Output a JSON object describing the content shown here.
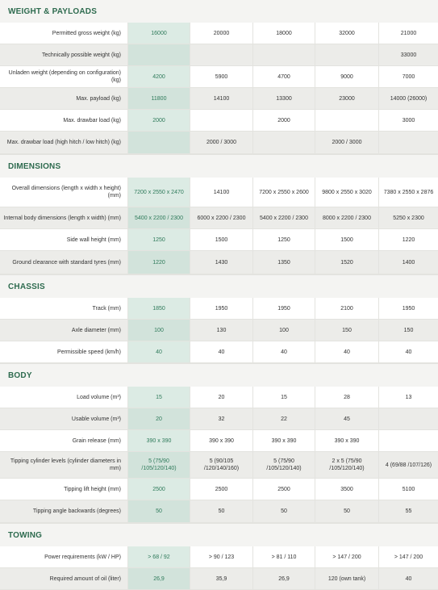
{
  "sections": [
    {
      "title": "WEIGHT & PAYLOADS",
      "rows": [
        {
          "label": "Permitted gross weight (kg)",
          "values": [
            "16000",
            "20000",
            "18000",
            "32000",
            "21000"
          ],
          "h": 26
        },
        {
          "label": "Technically possible weight (kg)",
          "values": [
            "",
            "",
            "",
            "",
            "33000"
          ],
          "h": 26
        },
        {
          "label": "Unladen weight (depending on configuration) (kg)",
          "values": [
            "4200",
            "5900",
            "4700",
            "9000",
            "7000"
          ],
          "h": 26
        },
        {
          "label": "Max. payload (kg)",
          "values": [
            "11800",
            "14100",
            "13300",
            "23000",
            "14000 (26000)"
          ],
          "h": 26
        },
        {
          "label": "Max. drawbar load (kg)",
          "values": [
            "2000",
            "",
            "2000",
            "",
            "3000"
          ],
          "h": 26
        },
        {
          "label": "Max. drawbar load (high hitch / low hitch) (kg)",
          "values": [
            "",
            "2000 / 3000",
            "",
            "2000 / 3000",
            ""
          ],
          "h": 27
        }
      ]
    },
    {
      "title": "DIMENSIONS",
      "rows": [
        {
          "label": "Overall dimensions (length x width x height) (mm)",
          "values": [
            "7200 x 2550 x 2470",
            "14100",
            "7200 x 2550 x 2600",
            "9800 x 2550 x 3020",
            "7380 x 2550 x 2876"
          ],
          "h": 36
        },
        {
          "label": "Internal body dimensions (length x width) (mm)",
          "values": [
            "5400 x 2200 / 2300",
            "6000 x 2200 / 2300",
            "5400 x 2200 / 2300",
            "8000 x 2200 / 2300",
            "5250 x 2300"
          ],
          "h": 26
        },
        {
          "label": "Side wall height (mm)",
          "values": [
            "1250",
            "1500",
            "1250",
            "1500",
            "1220"
          ],
          "h": 26
        },
        {
          "label": "Ground clearance with standard tyres (mm)",
          "values": [
            "1220",
            "1430",
            "1350",
            "1520",
            "1400"
          ],
          "h": 28
        }
      ]
    },
    {
      "title": "CHASSIS",
      "rows": [
        {
          "label": "Track (mm)",
          "values": [
            "1850",
            "1950",
            "1950",
            "2100",
            "1950"
          ],
          "h": 26
        },
        {
          "label": "Axle diameter (mm)",
          "values": [
            "100",
            "130",
            "100",
            "150",
            "150"
          ],
          "h": 26
        },
        {
          "label": "Permissible speed (km/h)",
          "values": [
            "40",
            "40",
            "40",
            "40",
            "40"
          ],
          "h": 26
        }
      ]
    },
    {
      "title": "BODY",
      "rows": [
        {
          "label": "Load volume (m³)",
          "values": [
            "15",
            "20",
            "15",
            "28",
            "13"
          ],
          "h": 26
        },
        {
          "label": "Usable volume (m³)",
          "values": [
            "20",
            "32",
            "22",
            "45",
            ""
          ],
          "h": 26
        },
        {
          "label": "Grain release (mm)",
          "values": [
            "390 x 390",
            "390 x 390",
            "390 x 390",
            "390 x 390",
            ""
          ],
          "h": 26
        },
        {
          "label": "Tipping cylinder levels (cylinder diameters in mm)",
          "values": [
            "5 (75/90 /105/120/140)",
            "5 (90/105 /120/140/160)",
            "5 (75/90 /105/120/140)",
            "2 x 5 (75/90 /105/120/140)",
            "4 (69/88 /107/126)"
          ],
          "h": 32
        },
        {
          "label": "Tipping lift height (mm)",
          "values": [
            "2500",
            "2500",
            "2500",
            "3500",
            "5100"
          ],
          "h": 26
        },
        {
          "label": "Tipping angle backwards (degrees)",
          "values": [
            "50",
            "50",
            "50",
            "50",
            "55"
          ],
          "h": 27
        }
      ]
    },
    {
      "title": "TOWING",
      "rows": [
        {
          "label": "Power requirements (kW / HP)",
          "values": [
            "> 68 / 92",
            "> 90 / 123",
            "> 81 / 110",
            "> 147 / 200",
            "> 147 / 200"
          ],
          "h": 26
        },
        {
          "label": "Required amount of oil (liter)",
          "values": [
            "26,9",
            "35,9",
            "26,9",
            "120 (own tank)",
            "40"
          ],
          "h": 26
        }
      ]
    }
  ]
}
